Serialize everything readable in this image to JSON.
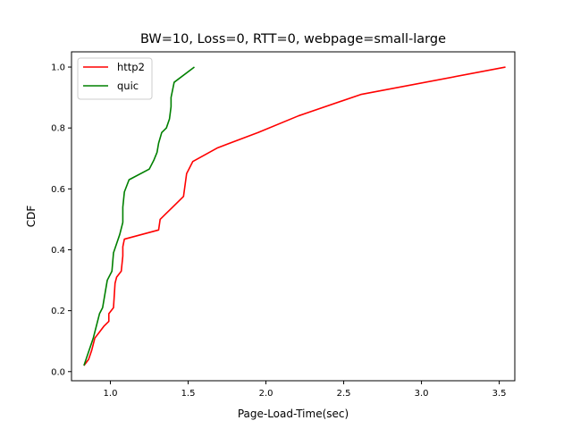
{
  "chart_data": {
    "type": "line",
    "title": "BW=10, Loss=0, RTT=0, webpage=small-large",
    "xlabel": "Page-Load-Time(sec)",
    "ylabel": "CDF",
    "xlim": [
      0.75,
      3.6
    ],
    "ylim": [
      -0.03,
      1.05
    ],
    "xticks": [
      1.0,
      1.5,
      2.0,
      2.5,
      3.0,
      3.5
    ],
    "xtick_labels": [
      "1.0",
      "1.5",
      "2.0",
      "2.5",
      "3.0",
      "3.5"
    ],
    "yticks": [
      0.0,
      0.2,
      0.4,
      0.6,
      0.8,
      1.0
    ],
    "ytick_labels": [
      "0.0",
      "0.2",
      "0.4",
      "0.6",
      "0.8",
      "1.0"
    ],
    "grid": false,
    "legend_position": "top-left",
    "series": [
      {
        "name": "http2",
        "color": "#ff0000",
        "x": [
          0.83,
          0.86,
          0.88,
          0.9,
          0.93,
          0.96,
          0.99,
          0.99,
          1.02,
          1.03,
          1.04,
          1.07,
          1.08,
          1.08,
          1.09,
          1.31,
          1.32,
          1.36,
          1.4,
          1.47,
          1.49,
          1.51,
          1.53,
          1.69,
          1.95,
          2.21,
          2.61,
          3.54
        ],
        "y": [
          0.02,
          0.04,
          0.07,
          0.11,
          0.13,
          0.15,
          0.165,
          0.19,
          0.21,
          0.29,
          0.31,
          0.33,
          0.38,
          0.41,
          0.435,
          0.465,
          0.5,
          0.52,
          0.54,
          0.575,
          0.65,
          0.67,
          0.69,
          0.735,
          0.785,
          0.84,
          0.91,
          1.0
        ]
      },
      {
        "name": "quic",
        "color": "#008000",
        "x": [
          0.83,
          0.85,
          0.87,
          0.89,
          0.9,
          0.91,
          0.93,
          0.95,
          0.96,
          0.98,
          1.01,
          1.02,
          1.04,
          1.06,
          1.07,
          1.08,
          1.08,
          1.09,
          1.12,
          1.25,
          1.28,
          1.3,
          1.31,
          1.33,
          1.36,
          1.38,
          1.39,
          1.39,
          1.41,
          1.54
        ],
        "y": [
          0.02,
          0.05,
          0.08,
          0.11,
          0.13,
          0.15,
          0.19,
          0.21,
          0.24,
          0.3,
          0.33,
          0.39,
          0.42,
          0.45,
          0.47,
          0.49,
          0.54,
          0.59,
          0.63,
          0.665,
          0.695,
          0.72,
          0.75,
          0.785,
          0.8,
          0.83,
          0.87,
          0.9,
          0.95,
          1.0
        ]
      }
    ]
  }
}
